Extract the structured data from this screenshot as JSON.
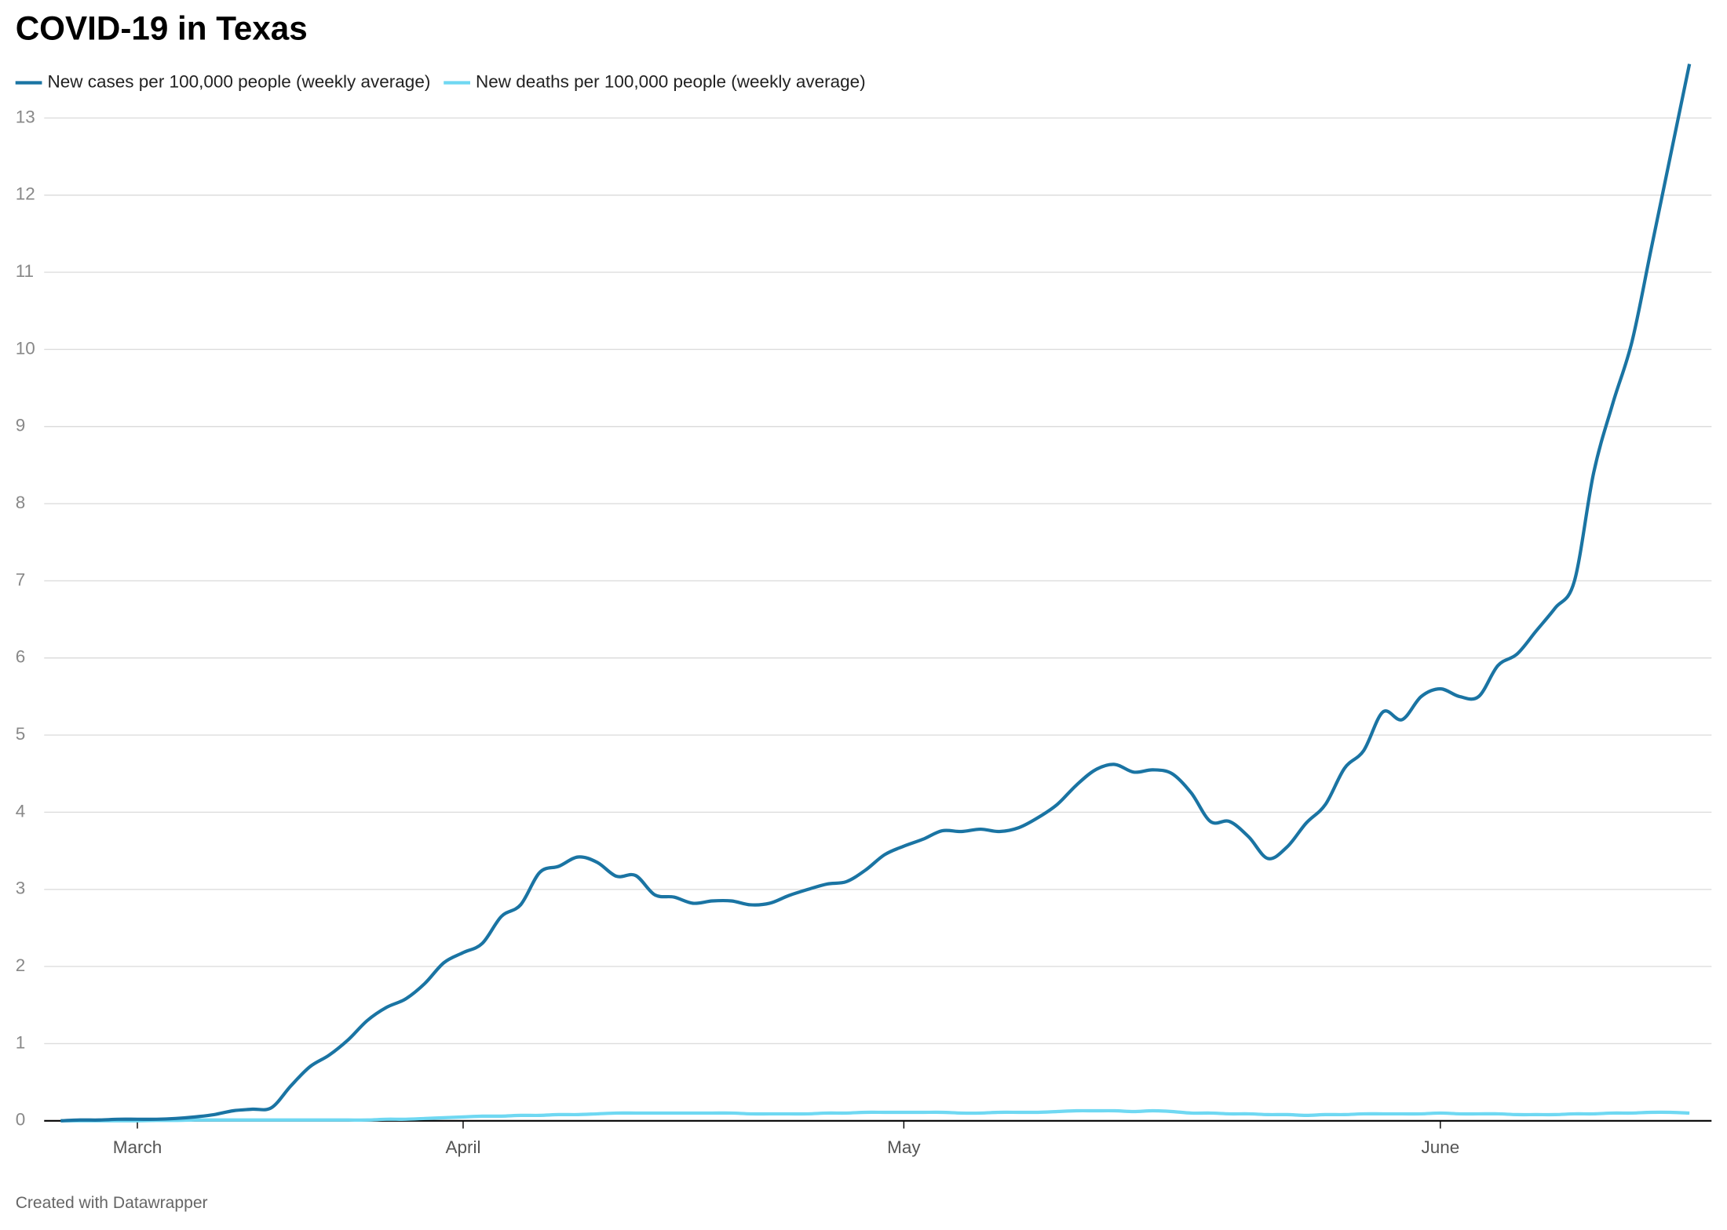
{
  "chart_data": {
    "type": "line",
    "title": "COVID-19 in Texas",
    "footer": "Created with Datawrapper",
    "categories": [
      null,
      null,
      null,
      null,
      "March",
      null,
      null,
      null,
      null,
      null,
      null,
      null,
      null,
      null,
      null,
      null,
      null,
      null,
      null,
      null,
      null,
      "April",
      null,
      null,
      null,
      null,
      null,
      null,
      null,
      null,
      null,
      null,
      null,
      null,
      null,
      null,
      null,
      null,
      null,
      null,
      null,
      null,
      null,
      null,
      "May",
      null,
      null,
      null,
      null,
      null,
      null,
      null,
      null,
      null,
      null,
      null,
      null,
      null,
      null,
      null,
      null,
      null,
      null,
      null,
      null,
      null,
      null,
      null,
      null,
      null,
      null,
      null,
      "June",
      null,
      null,
      null,
      null,
      null,
      null,
      null,
      null,
      null,
      null,
      null,
      null,
      null
    ],
    "series": [
      {
        "name": "New cases per 100,000 people (weekly average)",
        "color": "#1a74a3",
        "values": [
          0.0,
          0.01,
          0.01,
          0.02,
          0.02,
          0.02,
          0.03,
          0.05,
          0.08,
          0.13,
          0.15,
          0.17,
          0.45,
          0.7,
          0.85,
          1.05,
          1.3,
          1.47,
          1.58,
          1.78,
          2.05,
          2.18,
          2.3,
          2.65,
          2.8,
          3.22,
          3.3,
          3.42,
          3.35,
          3.17,
          3.18,
          2.93,
          2.9,
          2.82,
          2.85,
          2.85,
          2.8,
          2.82,
          2.92,
          3.0,
          3.07,
          3.1,
          3.25,
          3.45,
          3.56,
          3.65,
          3.76,
          3.75,
          3.78,
          3.75,
          3.8,
          3.93,
          4.1,
          4.35,
          4.55,
          4.62,
          4.52,
          4.55,
          4.5,
          4.25,
          3.88,
          3.88,
          3.68,
          3.4,
          3.55,
          3.86,
          4.1,
          4.57,
          4.8,
          5.3,
          5.2,
          5.5,
          5.6,
          5.5,
          5.5,
          5.9,
          6.05,
          6.35,
          6.65,
          7.0,
          8.4,
          9.3,
          10.1,
          11.3,
          12.5,
          13.7
        ]
      },
      {
        "name": "New deaths per 100,000 people (weekly average)",
        "color": "#6fd8f2",
        "values": [
          0,
          0,
          0,
          0,
          0,
          0.005,
          0.005,
          0.01,
          0.01,
          0.01,
          0.01,
          0.01,
          0.01,
          0.01,
          0.01,
          0.01,
          0.01,
          0.02,
          0.02,
          0.03,
          0.04,
          0.05,
          0.06,
          0.06,
          0.07,
          0.07,
          0.08,
          0.08,
          0.09,
          0.1,
          0.1,
          0.1,
          0.1,
          0.1,
          0.1,
          0.1,
          0.09,
          0.09,
          0.09,
          0.09,
          0.1,
          0.1,
          0.11,
          0.11,
          0.11,
          0.11,
          0.11,
          0.1,
          0.1,
          0.11,
          0.11,
          0.11,
          0.12,
          0.13,
          0.13,
          0.13,
          0.12,
          0.13,
          0.12,
          0.1,
          0.1,
          0.09,
          0.09,
          0.08,
          0.08,
          0.07,
          0.08,
          0.08,
          0.09,
          0.09,
          0.09,
          0.09,
          0.1,
          0.09,
          0.09,
          0.09,
          0.08,
          0.08,
          0.08,
          0.09,
          0.09,
          0.1,
          0.1,
          0.11,
          0.11,
          0.1
        ]
      }
    ],
    "ylim": [
      0,
      13.7
    ],
    "yticks": [
      0,
      1,
      2,
      3,
      4,
      5,
      6,
      7,
      8,
      9,
      10,
      11,
      12,
      13
    ],
    "grid": true
  }
}
